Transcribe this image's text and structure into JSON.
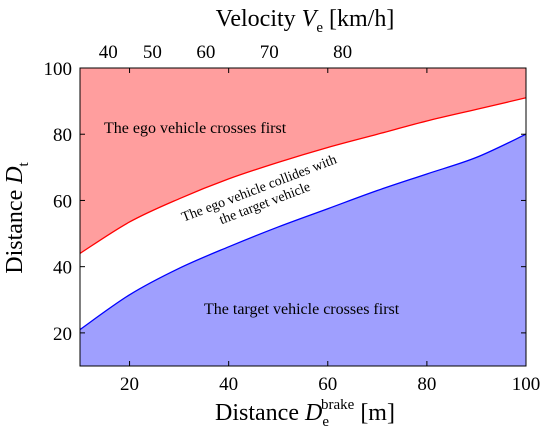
{
  "chart_data": {
    "type": "area",
    "xlabel": {
      "main": "Distance ",
      "symbol": "D",
      "sub": "e",
      "sup": "brake",
      "unit": " [m]"
    },
    "ylabel": {
      "main": "Distance ",
      "symbol": "D",
      "sub": "t"
    },
    "top_xlabel": {
      "main": "Velocity ",
      "symbol": "V",
      "sub": "e",
      "unit": " [km/h]"
    },
    "xlim": [
      10,
      100
    ],
    "ylim": [
      10,
      100
    ],
    "xticks": [
      20,
      40,
      60,
      80,
      100
    ],
    "yticks": [
      20,
      40,
      60,
      80,
      100
    ],
    "top_ticks": [
      {
        "label": "40",
        "x": 15.7
      },
      {
        "label": "50",
        "x": 24.6
      },
      {
        "label": "60",
        "x": 35.4
      },
      {
        "label": "70",
        "x": 48.2
      },
      {
        "label": "80",
        "x": 63.0
      }
    ],
    "series": [
      {
        "role": "upper_boundary",
        "color": "#ff0000",
        "x": [
          10,
          20,
          30,
          40,
          50,
          60,
          70,
          80,
          90,
          100
        ],
        "y": [
          44,
          53.5,
          60.5,
          66.5,
          71.5,
          76,
          80,
          84,
          87.5,
          91
        ]
      },
      {
        "role": "lower_boundary",
        "color": "#0000ff",
        "x": [
          10,
          20,
          30,
          40,
          50,
          60,
          70,
          80,
          90,
          100
        ],
        "y": [
          21,
          31.5,
          39.5,
          46,
          52,
          57.5,
          63,
          68,
          73,
          80
        ]
      }
    ],
    "regions": [
      {
        "label": "The ego vehicle crosses first",
        "color": "#ff9e9e"
      },
      {
        "label": "The target vehicle crosses first",
        "color": "#9f9ffe"
      }
    ],
    "annotation": {
      "line1": "The ego vehicle collides with",
      "line2": "the target vehicle"
    },
    "grid": false
  }
}
